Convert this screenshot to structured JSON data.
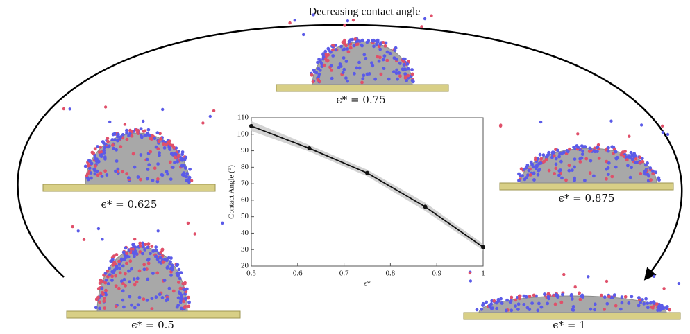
{
  "title": "Decreasing contact angle",
  "panels": [
    {
      "label": "ϵ* = 0.5"
    },
    {
      "label": "ϵ* = 0.625"
    },
    {
      "label": "ϵ* = 0.75"
    },
    {
      "label": "ϵ* = 0.875"
    },
    {
      "label": "ϵ* = 1"
    }
  ],
  "chart_data": {
    "type": "line",
    "x_label": "ϵ*",
    "y_label": "Contact Angle (°)",
    "x": [
      0.5,
      0.625,
      0.75,
      0.875,
      1
    ],
    "values": [
      105,
      91.5,
      76.5,
      56,
      31.5
    ],
    "errors": [
      3,
      2,
      2,
      2.5,
      2
    ],
    "color": "#111111",
    "band_color": "#c8c8c8",
    "xlim": [
      0.5,
      1
    ],
    "xticks": [
      0.5,
      0.6,
      0.7,
      0.8,
      0.9,
      1
    ],
    "ylim": [
      20,
      110
    ],
    "yticks": [
      20,
      30,
      40,
      50,
      60,
      70,
      80,
      90,
      100,
      110
    ]
  }
}
